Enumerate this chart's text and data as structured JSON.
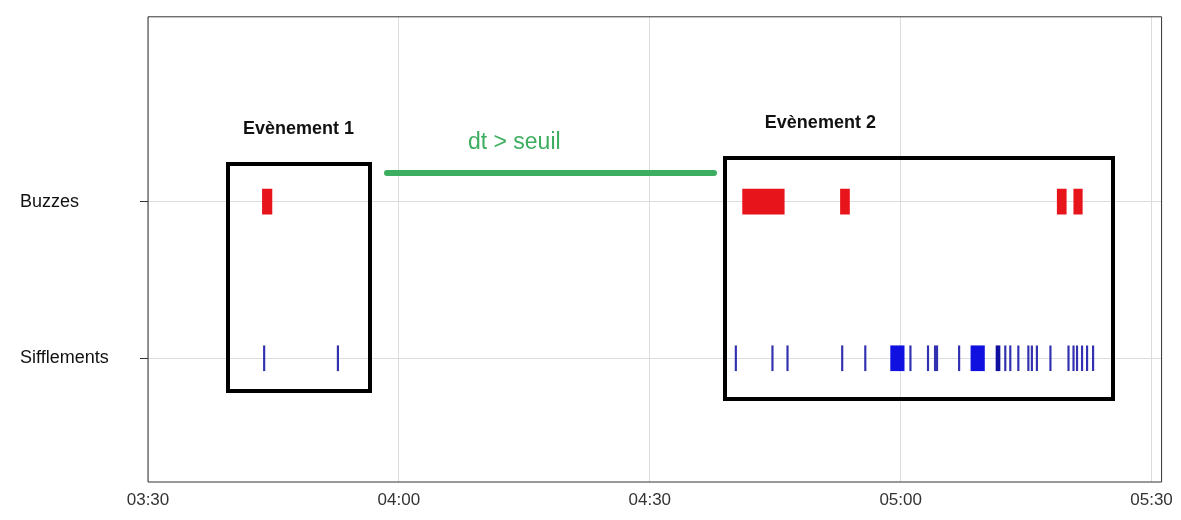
{
  "chart_data": {
    "type": "bar",
    "orientation": "horizontal",
    "categories": [
      "Buzzes",
      "Sifflements"
    ],
    "xlim": [
      3.5,
      5.52
    ],
    "xticks": [
      {
        "value": 3.5,
        "label": "03:30"
      },
      {
        "value": 4,
        "label": "04:00"
      },
      {
        "value": 4.5,
        "label": "04:30"
      },
      {
        "value": 5,
        "label": "05:00"
      },
      {
        "value": 5.5,
        "label": "05:30"
      }
    ],
    "grid": true,
    "annotations": [
      "Evènement 1",
      "Evènement 2",
      "dt > seuil"
    ],
    "series": [
      {
        "colors": [
          "#e8141c",
          "#3030b0"
        ],
        "base": [
          3.728,
          3.73
        ],
        "values": [
          0.019,
          0.003
        ]
      },
      {
        "colors": [
          "#e8141c",
          "#3030b0"
        ],
        "base": [
          4.685,
          3.877
        ],
        "values": [
          0.083,
          0.003
        ]
      },
      {
        "colors": [
          "#e8141c",
          "#3030b0"
        ],
        "base": [
          4.88,
          4.67
        ],
        "values": [
          0.018,
          0.003
        ]
      },
      {
        "colors": [
          "#e8141c",
          "#3030b0"
        ],
        "base": [
          5.312,
          4.743
        ],
        "values": [
          0.018,
          0.003
        ]
      },
      {
        "colors": [
          "#e8141c",
          "#3030b0"
        ],
        "base": [
          5.345,
          4.773
        ],
        "values": [
          0.017,
          0.003
        ]
      },
      {
        "colors": [
          null,
          "#3030b0"
        ],
        "base": [
          null,
          4.882
        ],
        "values": [
          null,
          0.003
        ]
      },
      {
        "colors": [
          null,
          "#3030b0"
        ],
        "base": [
          null,
          4.928
        ],
        "values": [
          null,
          0.003
        ]
      },
      {
        "colors": [
          null,
          "#1010e0"
        ],
        "base": [
          null,
          4.98
        ],
        "values": [
          null,
          0.027
        ]
      },
      {
        "colors": [
          null,
          "#3030b0"
        ],
        "base": [
          null,
          5.018
        ],
        "values": [
          null,
          0.003
        ]
      },
      {
        "colors": [
          null,
          "#3030b0"
        ],
        "base": [
          null,
          5.053
        ],
        "values": [
          null,
          0.003
        ]
      },
      {
        "colors": [
          null,
          "#3030b0"
        ],
        "base": [
          null,
          5.067
        ],
        "values": [
          null,
          0.007
        ]
      },
      {
        "colors": [
          null,
          "#3030b0"
        ],
        "base": [
          null,
          5.115
        ],
        "values": [
          null,
          0.003
        ]
      },
      {
        "colors": [
          null,
          "#1010e0"
        ],
        "base": [
          null,
          5.14
        ],
        "values": [
          null,
          0.027
        ]
      },
      {
        "colors": [
          null,
          "#1010a0"
        ],
        "base": [
          null,
          5.19
        ],
        "values": [
          null,
          0.008
        ]
      },
      {
        "colors": [
          null,
          "#3030b0"
        ],
        "base": [
          null,
          5.207
        ],
        "values": [
          null,
          0.003
        ]
      },
      {
        "colors": [
          null,
          "#3030b0"
        ],
        "base": [
          null,
          5.217
        ],
        "values": [
          null,
          0.003
        ]
      },
      {
        "colors": [
          null,
          "#3030b0"
        ],
        "base": [
          null,
          5.233
        ],
        "values": [
          null,
          0.003
        ]
      },
      {
        "colors": [
          null,
          "#3030b0"
        ],
        "base": [
          null,
          5.253
        ],
        "values": [
          null,
          0.003
        ]
      },
      {
        "colors": [
          null,
          "#3030b0"
        ],
        "base": [
          null,
          5.26
        ],
        "values": [
          null,
          0.003
        ]
      },
      {
        "colors": [
          null,
          "#3030b0"
        ],
        "base": [
          null,
          5.27
        ],
        "values": [
          null,
          0.003
        ]
      },
      {
        "colors": [
          null,
          "#3030b0"
        ],
        "base": [
          null,
          5.297
        ],
        "values": [
          null,
          0.003
        ]
      },
      {
        "colors": [
          null,
          "#3030b0"
        ],
        "base": [
          null,
          5.333
        ],
        "values": [
          null,
          0.003
        ]
      },
      {
        "colors": [
          null,
          "#3030b0"
        ],
        "base": [
          null,
          5.343
        ],
        "values": [
          null,
          0.003
        ]
      },
      {
        "colors": [
          null,
          "#3030b0"
        ],
        "base": [
          null,
          5.35
        ],
        "values": [
          null,
          0.003
        ]
      },
      {
        "colors": [
          null,
          "#3030b0"
        ],
        "base": [
          null,
          5.36
        ],
        "values": [
          null,
          0.003
        ]
      },
      {
        "colors": [
          null,
          "#3030b0"
        ],
        "base": [
          null,
          5.37
        ],
        "values": [
          null,
          0.003
        ]
      },
      {
        "colors": [
          null,
          "#3030b0"
        ],
        "base": [
          null,
          5.382
        ],
        "values": [
          null,
          0.003
        ]
      }
    ]
  }
}
